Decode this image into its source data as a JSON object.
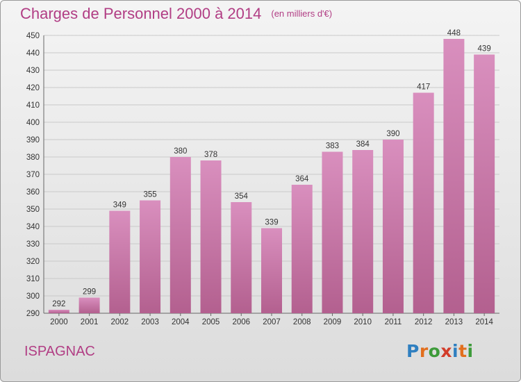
{
  "title": "Charges de Personnel 2000 à 2014",
  "subtitle": "(en milliers d'€)",
  "commune": "ISPAGNAC",
  "logo": {
    "letters": [
      "P",
      "r",
      "o",
      "x",
      "i",
      "t",
      "i"
    ],
    "colors": [
      "#2f7fc0",
      "#e26f1e",
      "#3d9b3a",
      "#d23c2a",
      "#2f7fc0",
      "#e26f1e",
      "#3d9b3a"
    ]
  },
  "colors": {
    "title": "#b13d84",
    "bar": "#d98fbe",
    "bar_dark": "#b3608f"
  },
  "chart_data": {
    "type": "bar",
    "categories": [
      "2000",
      "2001",
      "2002",
      "2003",
      "2004",
      "2005",
      "2006",
      "2007",
      "2008",
      "2009",
      "2010",
      "2011",
      "2012",
      "2013",
      "2014"
    ],
    "values": [
      292,
      299,
      349,
      355,
      380,
      378,
      354,
      339,
      364,
      383,
      384,
      390,
      417,
      448,
      439
    ],
    "ylim": [
      290,
      450
    ],
    "yticks": [
      290,
      300,
      310,
      320,
      330,
      340,
      350,
      360,
      370,
      380,
      390,
      400,
      410,
      420,
      430,
      440,
      450
    ],
    "grid": true
  }
}
